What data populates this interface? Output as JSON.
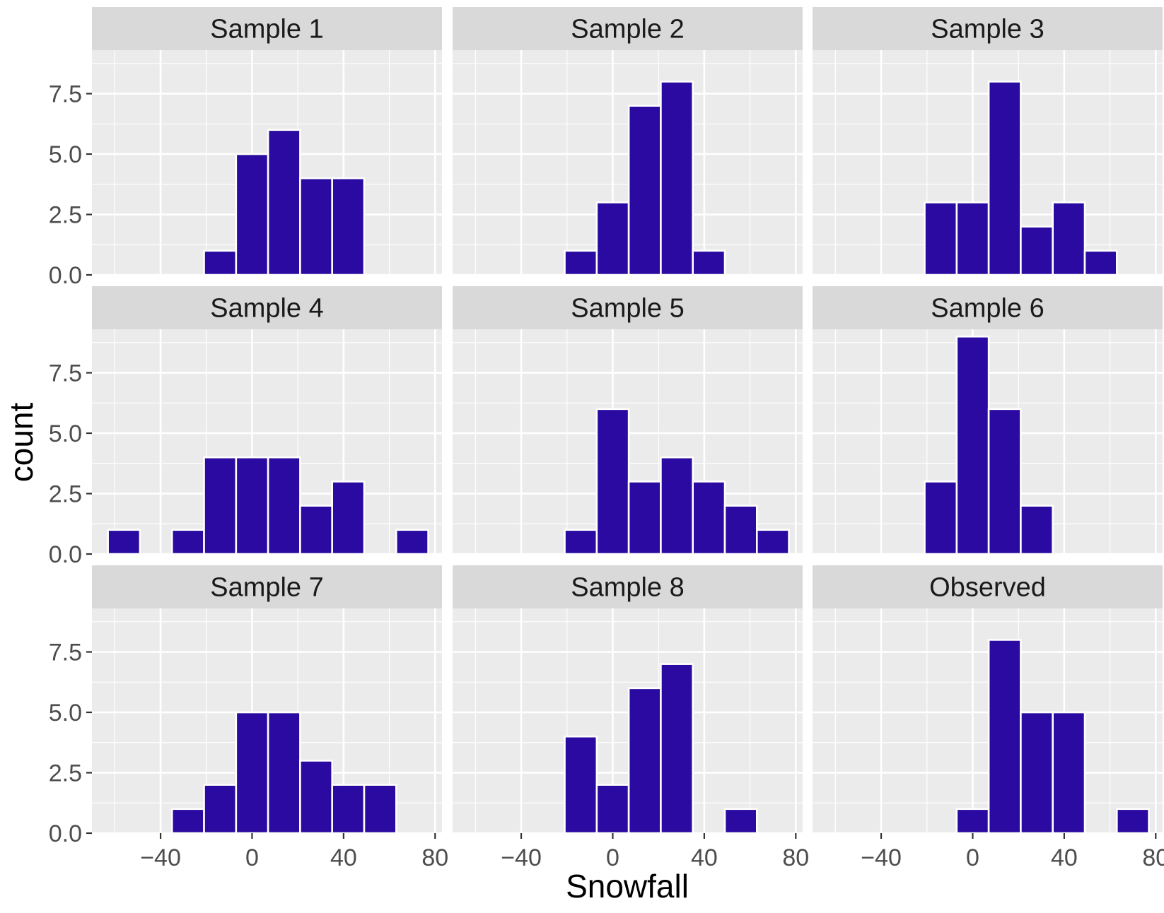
{
  "chart_data": {
    "type": "bar",
    "xlabel": "Snowfall",
    "ylabel": "count",
    "xlim": [
      -70,
      83
    ],
    "ylim": [
      0,
      9.3
    ],
    "x_ticks": [
      -40,
      0,
      40,
      80
    ],
    "x_tick_labels": [
      "−40",
      "0",
      "40",
      "80"
    ],
    "y_ticks": [
      0,
      2.5,
      5,
      7.5
    ],
    "y_tick_labels": [
      "0.0",
      "2.5",
      "5.0",
      "7.5"
    ],
    "bin_width": 14,
    "grid": true,
    "bar_color": "#2a0aa0",
    "panel_background": "#ebebeb",
    "strip_background": "#d9d9d9",
    "panels": [
      {
        "label": "Sample 1",
        "bins": [
          [
            -14,
            1
          ],
          [
            0,
            5
          ],
          [
            14,
            6
          ],
          [
            28,
            4
          ],
          [
            42,
            4
          ]
        ]
      },
      {
        "label": "Sample 2",
        "bins": [
          [
            -14,
            1
          ],
          [
            0,
            3
          ],
          [
            14,
            7
          ],
          [
            28,
            8
          ],
          [
            42,
            1
          ]
        ]
      },
      {
        "label": "Sample 3",
        "bins": [
          [
            -14,
            3
          ],
          [
            0,
            3
          ],
          [
            14,
            8
          ],
          [
            28,
            2
          ],
          [
            42,
            3
          ],
          [
            56,
            1
          ]
        ]
      },
      {
        "label": "Sample 4",
        "bins": [
          [
            -56,
            1
          ],
          [
            -28,
            1
          ],
          [
            -14,
            4
          ],
          [
            0,
            4
          ],
          [
            14,
            4
          ],
          [
            28,
            2
          ],
          [
            42,
            3
          ],
          [
            70,
            1
          ]
        ]
      },
      {
        "label": "Sample 5",
        "bins": [
          [
            -14,
            1
          ],
          [
            0,
            6
          ],
          [
            14,
            3
          ],
          [
            28,
            4
          ],
          [
            42,
            3
          ],
          [
            56,
            2
          ],
          [
            70,
            1
          ]
        ]
      },
      {
        "label": "Sample 6",
        "bins": [
          [
            -14,
            3
          ],
          [
            0,
            9
          ],
          [
            14,
            6
          ],
          [
            28,
            2
          ]
        ]
      },
      {
        "label": "Sample 7",
        "bins": [
          [
            -28,
            1
          ],
          [
            -14,
            2
          ],
          [
            0,
            5
          ],
          [
            14,
            5
          ],
          [
            28,
            3
          ],
          [
            42,
            2
          ],
          [
            56,
            2
          ]
        ]
      },
      {
        "label": "Sample 8",
        "bins": [
          [
            -14,
            4
          ],
          [
            0,
            2
          ],
          [
            14,
            6
          ],
          [
            28,
            7
          ],
          [
            56,
            1
          ]
        ]
      },
      {
        "label": "Observed",
        "bins": [
          [
            0,
            1
          ],
          [
            14,
            8
          ],
          [
            28,
            5
          ],
          [
            42,
            5
          ],
          [
            70,
            1
          ]
        ]
      }
    ]
  }
}
